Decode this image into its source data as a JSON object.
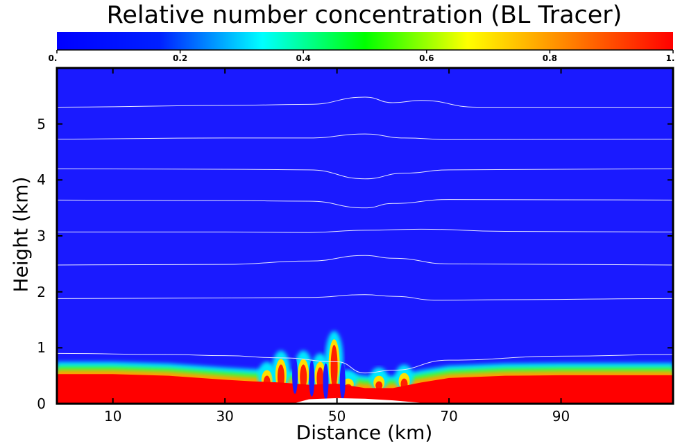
{
  "chart_data": {
    "type": "heatmap",
    "title": "Relative number concentration (BL Tracer)",
    "xlabel": "Distance (km)",
    "ylabel": "Height (km)",
    "xlim": [
      0,
      110
    ],
    "ylim": [
      0,
      6
    ],
    "x_ticks": [
      {
        "value": 10,
        "label": "10"
      },
      {
        "value": 30,
        "label": "30"
      },
      {
        "value": 50,
        "label": "50"
      },
      {
        "value": 70,
        "label": "70"
      },
      {
        "value": 90,
        "label": "90"
      }
    ],
    "y_ticks": [
      {
        "value": 0,
        "label": "0"
      },
      {
        "value": 1,
        "label": "1"
      },
      {
        "value": 2,
        "label": "2"
      },
      {
        "value": 3,
        "label": "3"
      },
      {
        "value": 4,
        "label": "4"
      },
      {
        "value": 5,
        "label": "5"
      }
    ],
    "colorbar": {
      "range": [
        0,
        1
      ],
      "ticks": [
        {
          "value": 0,
          "label": "0."
        },
        {
          "value": 0.2,
          "label": "0.2"
        },
        {
          "value": 0.4,
          "label": "0.4"
        },
        {
          "value": 0.6,
          "label": "0.6"
        },
        {
          "value": 0.8,
          "label": "0.8"
        },
        {
          "value": 1,
          "label": "1."
        }
      ],
      "colormap": [
        "#0000ff",
        "#0020ff",
        "#00ffff",
        "#00ff00",
        "#ffff00",
        "#ff8000",
        "#ff0000"
      ],
      "placement": "top"
    },
    "boundary_layer": {
      "description_values": "tracer concentration ~1 below boundary-layer top, ~0 above",
      "bl_top_km": [
        [
          0,
          0.55
        ],
        [
          10,
          0.55
        ],
        [
          20,
          0.52
        ],
        [
          30,
          0.45
        ],
        [
          35,
          0.42
        ],
        [
          40,
          0.4
        ],
        [
          45,
          0.36
        ],
        [
          50,
          0.38
        ],
        [
          55,
          0.3
        ],
        [
          60,
          0.3
        ],
        [
          65,
          0.4
        ],
        [
          70,
          0.48
        ],
        [
          80,
          0.52
        ],
        [
          90,
          0.53
        ],
        [
          100,
          0.53
        ],
        [
          110,
          0.53
        ]
      ],
      "plumes": [
        {
          "x": 37.5,
          "top": 0.7
        },
        {
          "x": 40,
          "top": 0.9
        },
        {
          "x": 44,
          "top": 0.9
        },
        {
          "x": 47,
          "top": 0.85
        },
        {
          "x": 49.5,
          "top": 1.25
        },
        {
          "x": 52,
          "top": 0.55
        },
        {
          "x": 57.5,
          "top": 0.6
        },
        {
          "x": 62,
          "top": 0.65
        }
      ],
      "terrain": [
        [
          42,
          0
        ],
        [
          45,
          0.08
        ],
        [
          50,
          0.1
        ],
        [
          55,
          0.09
        ],
        [
          60,
          0.06
        ],
        [
          67,
          0
        ]
      ]
    },
    "isolines": [
      {
        "base": 0.9,
        "points": [
          [
            0,
            0.9
          ],
          [
            20,
            0.88
          ],
          [
            30,
            0.86
          ],
          [
            40,
            0.82
          ],
          [
            50,
            0.75
          ],
          [
            55,
            0.55
          ],
          [
            60,
            0.6
          ],
          [
            70,
            0.78
          ],
          [
            90,
            0.85
          ],
          [
            110,
            0.88
          ]
        ]
      },
      {
        "base": 1.88,
        "points": [
          [
            0,
            1.88
          ],
          [
            30,
            1.89
          ],
          [
            45,
            1.9
          ],
          [
            55,
            1.95
          ],
          [
            60,
            1.92
          ],
          [
            68,
            1.85
          ],
          [
            80,
            1.86
          ],
          [
            110,
            1.88
          ]
        ]
      },
      {
        "base": 2.48,
        "points": [
          [
            0,
            2.48
          ],
          [
            30,
            2.49
          ],
          [
            45,
            2.55
          ],
          [
            55,
            2.65
          ],
          [
            60,
            2.6
          ],
          [
            70,
            2.5
          ],
          [
            110,
            2.48
          ]
        ]
      },
      {
        "base": 3.07,
        "points": [
          [
            0,
            3.07
          ],
          [
            30,
            3.07
          ],
          [
            45,
            3.06
          ],
          [
            55,
            3.1
          ],
          [
            65,
            3.12
          ],
          [
            80,
            3.08
          ],
          [
            110,
            3.07
          ]
        ]
      },
      {
        "base": 3.64,
        "points": [
          [
            0,
            3.64
          ],
          [
            30,
            3.63
          ],
          [
            45,
            3.62
          ],
          [
            55,
            3.5
          ],
          [
            60,
            3.58
          ],
          [
            70,
            3.65
          ],
          [
            110,
            3.64
          ]
        ]
      },
      {
        "base": 4.2,
        "points": [
          [
            0,
            4.2
          ],
          [
            30,
            4.19
          ],
          [
            45,
            4.18
          ],
          [
            55,
            4.02
          ],
          [
            62,
            4.12
          ],
          [
            70,
            4.18
          ],
          [
            110,
            4.2
          ]
        ]
      },
      {
        "base": 4.73,
        "points": [
          [
            0,
            4.73
          ],
          [
            30,
            4.75
          ],
          [
            45,
            4.75
          ],
          [
            55,
            4.82
          ],
          [
            62,
            4.75
          ],
          [
            70,
            4.72
          ],
          [
            110,
            4.73
          ]
        ]
      },
      {
        "base": 5.3,
        "points": [
          [
            0,
            5.3
          ],
          [
            30,
            5.33
          ],
          [
            45,
            5.35
          ],
          [
            55,
            5.48
          ],
          [
            60,
            5.38
          ],
          [
            65,
            5.42
          ],
          [
            75,
            5.3
          ],
          [
            110,
            5.3
          ]
        ]
      }
    ]
  }
}
